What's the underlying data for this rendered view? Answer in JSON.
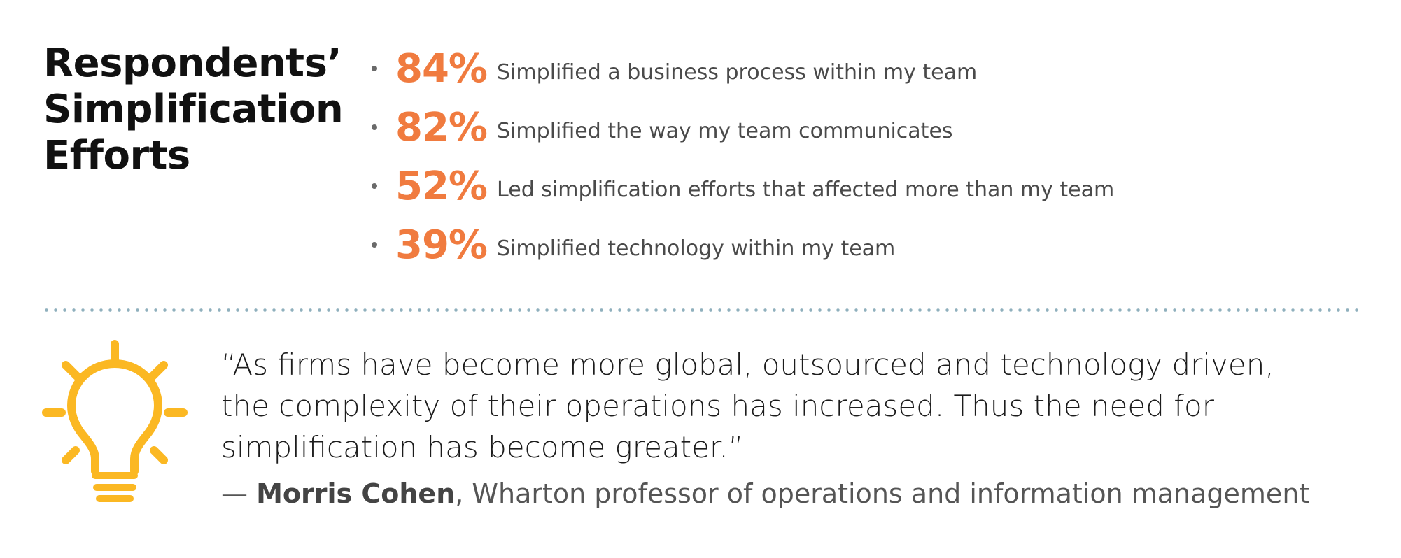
{
  "heading": {
    "line1": "Respondents’",
    "line2": "Simplification",
    "line3": "Efforts"
  },
  "stats": [
    {
      "value": "84%",
      "label": "Simplified a business process within my team"
    },
    {
      "value": "82%",
      "label": "Simplified the way my team communicates"
    },
    {
      "value": "52%",
      "label": "Led simplification efforts that affected more than my team"
    },
    {
      "value": "39%",
      "label": "Simplified technology within my team"
    }
  ],
  "quote": {
    "line1": "“As firms have become more global, outsourced and technology driven,",
    "line2": "the complexity of their operations has increased. Thus the need for",
    "line3": "simplification has become greater.”",
    "dash": "— ",
    "author": "Morris Cohen",
    "title": ", Wharton professor of operations and information management"
  },
  "icons": {
    "lightbulb": "lightbulb-icon"
  },
  "colors": {
    "accent": "#f07b3f",
    "bulb": "#fbb823",
    "divider": "#8fb0bd"
  }
}
